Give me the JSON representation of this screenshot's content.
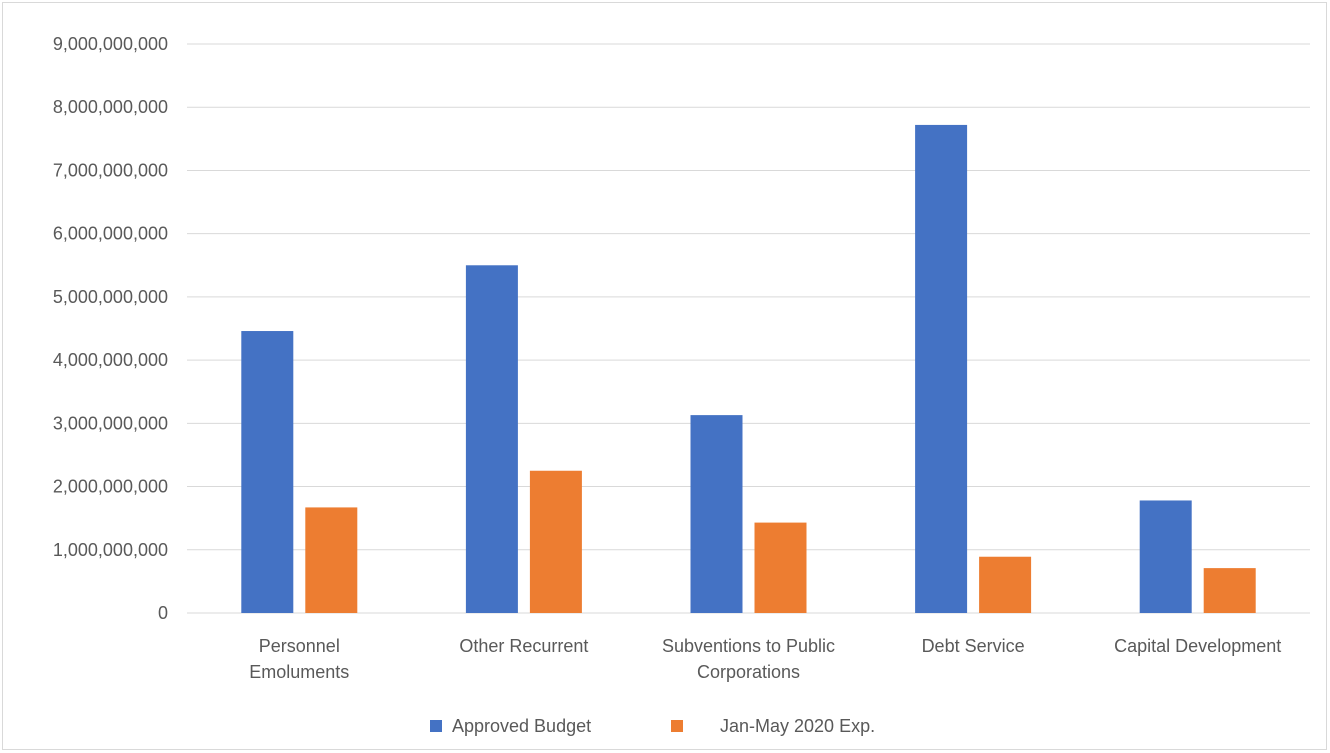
{
  "chart_data": {
    "type": "bar",
    "categories": [
      [
        "Personnel",
        "Emoluments"
      ],
      [
        "Other Recurrent"
      ],
      [
        "Subventions to Public",
        "Corporations"
      ],
      [
        "Debt Service"
      ],
      [
        "Capital Development"
      ]
    ],
    "series": [
      {
        "name": "Approved Budget",
        "color": "#4472C4",
        "values": [
          4460000000,
          5500000000,
          3130000000,
          7720000000,
          1780000000
        ]
      },
      {
        "name": "Jan-May 2020 Exp.",
        "color": "#ED7D31",
        "values": [
          1670000000,
          2250000000,
          1430000000,
          890000000,
          710000000
        ]
      }
    ],
    "y_ticks": [
      "0",
      "1,000,000,000",
      "2,000,000,000",
      "3,000,000,000",
      "4,000,000,000",
      "5,000,000,000",
      "6,000,000,000",
      "7,000,000,000",
      "8,000,000,000",
      "9,000,000,000"
    ],
    "ylim": [
      0,
      9000000000
    ],
    "grid": true,
    "gridline_color": "#d9d9d9",
    "legend_position": "bottom",
    "title": "",
    "xlabel": "",
    "ylabel": ""
  }
}
